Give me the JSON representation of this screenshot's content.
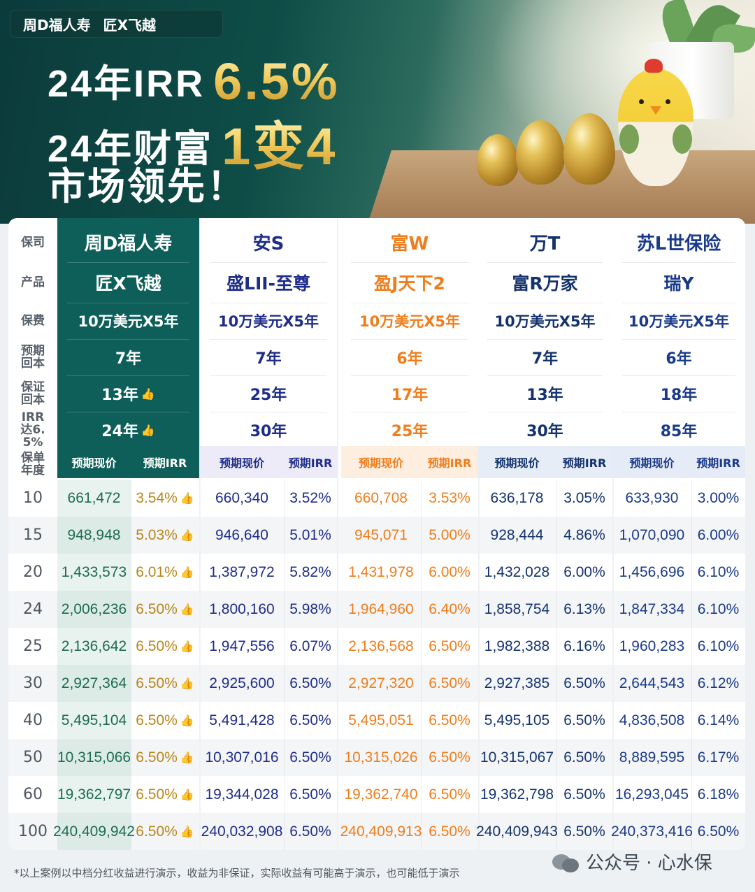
{
  "brand": {
    "company": "周D福人寿",
    "product": "匠X飞越"
  },
  "headline": {
    "line1_prefix": "24年IRR",
    "line1_gold": "6.5%",
    "line2_prefix": "24年财富",
    "line2_gold": "1变4",
    "line3": "市场领先！"
  },
  "labels": {
    "company": "保司",
    "product": "产品",
    "premium": "保费",
    "expected_breakeven": "预期回本",
    "guaranteed_breakeven": "保证回本",
    "irr_reach": "IRR达6.5%",
    "policy_year": "保单年度"
  },
  "sub_headers": {
    "value": "预期现价",
    "irr": "预期IRR"
  },
  "colors": {
    "zhou_bg": "#0e5f5a",
    "zhou_value_bg": "#e8f3ef",
    "zhou_value_text": "#1e6b54",
    "zhou_irr_text": "#b8861b",
    "an_text": "#1e2d8a",
    "an_sub_bg": "#ecebf7",
    "fu_text": "#f07d1b",
    "fu_sub_bg": "#fdeee0",
    "wan_text": "#14336e",
    "wan_sub_bg": "#e6edf7",
    "su_text": "#1a3a8a",
    "su_sub_bg": "#e6ecf7"
  },
  "companies": [
    {
      "key": "zhou",
      "name": "周D福人寿",
      "product": "匠X飞越",
      "premium": "10万美元X5年",
      "expected_breakeven": "7年",
      "guaranteed_breakeven": "13年",
      "irr_reach": "24年",
      "thumbs": true
    },
    {
      "key": "an",
      "name": "安S",
      "product": "盛LII-至尊",
      "premium": "10万美元X5年",
      "expected_breakeven": "7年",
      "guaranteed_breakeven": "25年",
      "irr_reach": "30年"
    },
    {
      "key": "fu",
      "name": "富W",
      "product": "盈J天下2",
      "premium": "10万美元X5年",
      "expected_breakeven": "6年",
      "guaranteed_breakeven": "17年",
      "irr_reach": "25年"
    },
    {
      "key": "wan",
      "name": "万T",
      "product": "富R万家",
      "premium": "10万美元X5年",
      "expected_breakeven": "7年",
      "guaranteed_breakeven": "13年",
      "irr_reach": "30年"
    },
    {
      "key": "su",
      "name": "苏L世保险",
      "product": "瑞Y",
      "premium": "10万美元X5年",
      "expected_breakeven": "6年",
      "guaranteed_breakeven": "18年",
      "irr_reach": "85年"
    }
  ],
  "rows": [
    {
      "year": "10",
      "vals": [
        "661,472",
        "3.54%",
        "660,340",
        "3.52%",
        "660,708",
        "3.53%",
        "636,178",
        "3.05%",
        "633,930",
        "3.00%"
      ]
    },
    {
      "year": "15",
      "vals": [
        "948,948",
        "5.03%",
        "946,640",
        "5.01%",
        "945,071",
        "5.00%",
        "928,444",
        "4.86%",
        "1,070,090",
        "6.00%"
      ]
    },
    {
      "year": "20",
      "vals": [
        "1,433,573",
        "6.01%",
        "1,387,972",
        "5.82%",
        "1,431,978",
        "6.00%",
        "1,432,028",
        "6.00%",
        "1,456,696",
        "6.10%"
      ]
    },
    {
      "year": "24",
      "vals": [
        "2,006,236",
        "6.50%",
        "1,800,160",
        "5.98%",
        "1,964,960",
        "6.40%",
        "1,858,754",
        "6.13%",
        "1,847,334",
        "6.10%"
      ]
    },
    {
      "year": "25",
      "vals": [
        "2,136,642",
        "6.50%",
        "1,947,556",
        "6.07%",
        "2,136,568",
        "6.50%",
        "1,982,388",
        "6.16%",
        "1,960,283",
        "6.10%"
      ]
    },
    {
      "year": "30",
      "vals": [
        "2,927,364",
        "6.50%",
        "2,925,600",
        "6.50%",
        "2,927,320",
        "6.50%",
        "2,927,385",
        "6.50%",
        "2,644,543",
        "6.12%"
      ]
    },
    {
      "year": "40",
      "vals": [
        "5,495,104",
        "6.50%",
        "5,491,428",
        "6.50%",
        "5,495,051",
        "6.50%",
        "5,495,105",
        "6.50%",
        "4,836,508",
        "6.14%"
      ]
    },
    {
      "year": "50",
      "vals": [
        "10,315,066",
        "6.50%",
        "10,307,016",
        "6.50%",
        "10,315,026",
        "6.50%",
        "10,315,067",
        "6.50%",
        "8,889,595",
        "6.17%"
      ]
    },
    {
      "year": "60",
      "vals": [
        "19,362,797",
        "6.50%",
        "19,344,028",
        "6.50%",
        "19,362,740",
        "6.50%",
        "19,362,798",
        "6.50%",
        "16,293,045",
        "6.18%"
      ]
    },
    {
      "year": "100",
      "vals": [
        "240,409,942",
        "6.50%",
        "240,032,908",
        "6.50%",
        "240,409,913",
        "6.50%",
        "240,409,943",
        "6.50%",
        "240,373,416",
        "6.50%"
      ]
    }
  ],
  "footer": {
    "note": "*以上案例以中档分红收益进行演示，收益为非保证，实际收益有可能高于演示，也可能低于演示",
    "watermark": "公众号 · 心水保"
  },
  "icons": {
    "thumb": "thumbs-up-icon"
  }
}
